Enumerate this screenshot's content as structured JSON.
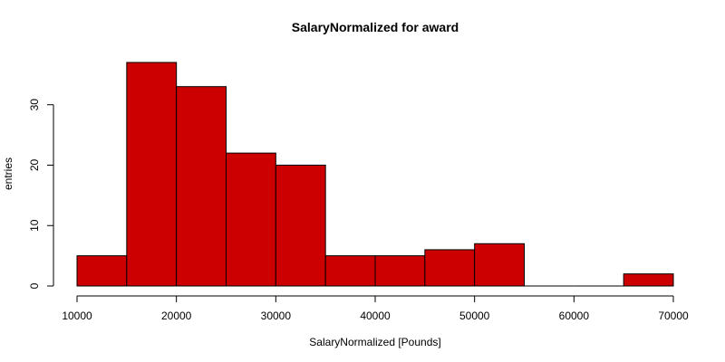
{
  "chart_data": {
    "type": "bar",
    "title": "SalaryNormalized for award",
    "xlabel": "SalaryNormalized [Pounds]",
    "ylabel": "entries",
    "xlim": [
      10000,
      70000
    ],
    "ylim": [
      0,
      37
    ],
    "x_ticks": [
      10000,
      20000,
      30000,
      40000,
      50000,
      60000,
      70000
    ],
    "y_ticks": [
      0,
      10,
      20,
      30
    ],
    "bin_edges": [
      10000,
      15000,
      20000,
      25000,
      30000,
      35000,
      40000,
      45000,
      50000,
      55000,
      60000,
      65000,
      70000
    ],
    "values": [
      5,
      37,
      33,
      22,
      20,
      5,
      5,
      6,
      7,
      0,
      0,
      2
    ],
    "bar_color": "#cc0000",
    "grid": false
  }
}
